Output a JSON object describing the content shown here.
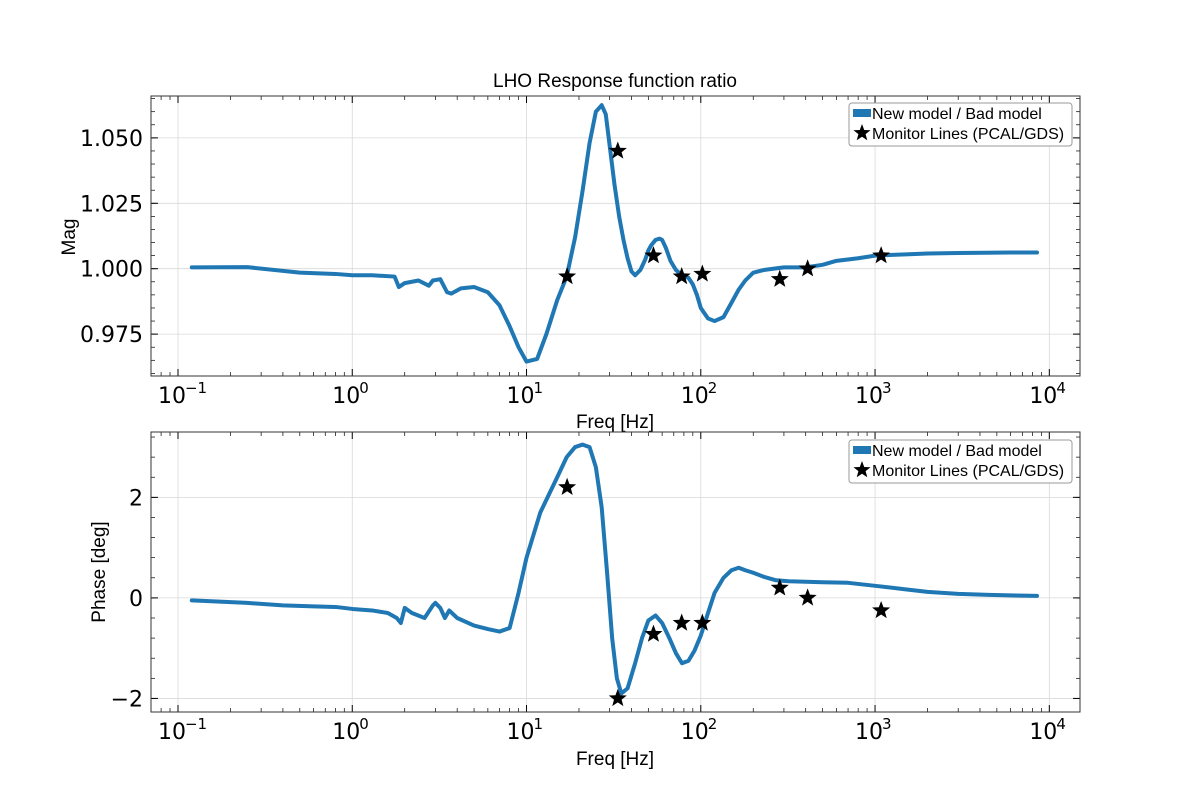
{
  "chart_data": [
    {
      "type": "line",
      "title": "LHO Response function ratio",
      "xlabel": "Freq [Hz]",
      "ylabel": "Mag",
      "xscale": "log",
      "xlim": [
        0.07,
        15000
      ],
      "ylim": [
        0.959,
        1.066
      ],
      "yticks": [
        0.975,
        1.0,
        1.025,
        1.05
      ],
      "ytick_labels": [
        "0.975",
        "1.000",
        "1.025",
        "1.050"
      ],
      "xtick_labels": [
        {
          "base": "10",
          "exp": "−1"
        },
        {
          "base": "10",
          "exp": "0"
        },
        {
          "base": "10",
          "exp": "1"
        },
        {
          "base": "10",
          "exp": "2"
        },
        {
          "base": "10",
          "exp": "3"
        },
        {
          "base": "10",
          "exp": "4"
        }
      ],
      "grid": true,
      "legend_position": "top-right",
      "series": [
        {
          "name": "New model / Bad model",
          "color": "#1f77b4",
          "x": [
            0.12,
            0.25,
            0.5,
            0.8,
            1.0,
            1.3,
            1.75,
            1.85,
            2.0,
            2.4,
            2.75,
            2.9,
            3.2,
            3.5,
            3.7,
            4.2,
            5.0,
            6.0,
            7.0,
            8.0,
            9.0,
            10.0,
            11.5,
            13.0,
            15.0,
            17.0,
            19.0,
            21.0,
            23.0,
            25.0,
            27.0,
            28.5,
            30.0,
            32.0,
            34.0,
            36.0,
            38.0,
            40.0,
            42.0,
            45.0,
            48.0,
            50.0,
            52.0,
            55.0,
            58.0,
            60.0,
            63.0,
            67.0,
            72.0,
            78.0,
            85.0,
            90.0,
            95.0,
            100.0,
            110.0,
            120.0,
            135.0,
            150.0,
            165.0,
            180.0,
            200.0,
            230.0,
            260.0,
            300.0,
            350.0,
            400.0,
            500.0,
            600.0,
            800.0,
            1000.0,
            1500.0,
            2000.0,
            3000.0,
            4300.0,
            6000.0,
            8500.0
          ],
          "values": [
            1.0005,
            1.0006,
            0.9985,
            0.998,
            0.9975,
            0.9975,
            0.997,
            0.993,
            0.9945,
            0.9955,
            0.9935,
            0.9955,
            0.996,
            0.991,
            0.9905,
            0.9925,
            0.993,
            0.991,
            0.986,
            0.978,
            0.97,
            0.9645,
            0.9655,
            0.975,
            0.988,
            0.997,
            1.012,
            1.03,
            1.048,
            1.06,
            1.0625,
            1.059,
            1.047,
            1.032,
            1.02,
            1.011,
            1.004,
            0.999,
            0.9975,
            0.9995,
            1.0035,
            1.007,
            1.009,
            1.011,
            1.0115,
            1.011,
            1.008,
            1.003,
            0.9995,
            0.9975,
            0.9965,
            0.994,
            0.99,
            0.985,
            0.981,
            0.98,
            0.9815,
            0.987,
            0.992,
            0.9955,
            0.9985,
            0.9995,
            1.0,
            1.0005,
            1.0005,
            1.0005,
            1.0015,
            1.003,
            1.004,
            1.005,
            1.0055,
            1.0058,
            1.006,
            1.0061,
            1.0062,
            1.0062
          ]
        },
        {
          "name": "Monitor Lines (PCAL/GDS)",
          "marker": "star",
          "color": "#000000",
          "x": [
            17.1,
            33.4,
            53.5,
            77.7,
            102.1,
            283.9,
            410.3,
            1083.7
          ],
          "values": [
            0.997,
            1.045,
            1.005,
            0.997,
            0.998,
            0.996,
            1.0,
            1.005
          ]
        }
      ]
    },
    {
      "type": "line",
      "title": "",
      "xlabel": "Freq [Hz]",
      "ylabel": "Phase [deg]",
      "xscale": "log",
      "xlim": [
        0.07,
        15000
      ],
      "ylim": [
        -2.27,
        3.3
      ],
      "yticks": [
        -2,
        0,
        2
      ],
      "ytick_labels": [
        "−2",
        "0",
        "2"
      ],
      "xtick_labels": [
        {
          "base": "10",
          "exp": "−1"
        },
        {
          "base": "10",
          "exp": "0"
        },
        {
          "base": "10",
          "exp": "1"
        },
        {
          "base": "10",
          "exp": "2"
        },
        {
          "base": "10",
          "exp": "3"
        },
        {
          "base": "10",
          "exp": "4"
        }
      ],
      "grid": true,
      "legend_position": "top-right",
      "series": [
        {
          "name": "New model / Bad model",
          "color": "#1f77b4",
          "x": [
            0.12,
            0.25,
            0.4,
            0.6,
            0.8,
            0.9,
            1.0,
            1.3,
            1.6,
            1.8,
            1.9,
            2.0,
            2.2,
            2.6,
            2.9,
            3.0,
            3.2,
            3.4,
            3.6,
            4.0,
            5.0,
            6.0,
            7.0,
            8.0,
            9.0,
            10.0,
            12.0,
            15.0,
            17.0,
            19.0,
            21.0,
            23.0,
            25.0,
            27.0,
            29.0,
            31.0,
            33.0,
            35.0,
            38.0,
            42.0,
            46.0,
            50.0,
            55.0,
            60.0,
            66.0,
            72.0,
            78.0,
            85.0,
            92.0,
            100.0,
            110.0,
            120.0,
            135.0,
            150.0,
            165.0,
            180.0,
            200.0,
            230.0,
            270.0,
            320.0,
            400.0,
            500.0,
            700.0,
            1000.0,
            1500.0,
            2000.0,
            3000.0,
            4500.0,
            6000.0,
            8500.0
          ],
          "values": [
            -0.05,
            -0.1,
            -0.15,
            -0.17,
            -0.18,
            -0.2,
            -0.22,
            -0.25,
            -0.3,
            -0.4,
            -0.5,
            -0.2,
            -0.3,
            -0.4,
            -0.15,
            -0.1,
            -0.2,
            -0.4,
            -0.25,
            -0.4,
            -0.55,
            -0.62,
            -0.67,
            -0.6,
            0.1,
            0.8,
            1.7,
            2.4,
            2.8,
            3.0,
            3.05,
            3.0,
            2.6,
            1.8,
            0.5,
            -0.8,
            -1.6,
            -1.9,
            -1.8,
            -1.3,
            -0.8,
            -0.45,
            -0.35,
            -0.5,
            -0.8,
            -1.1,
            -1.3,
            -1.25,
            -1.05,
            -0.75,
            -0.3,
            0.1,
            0.4,
            0.55,
            0.6,
            0.55,
            0.5,
            0.42,
            0.35,
            0.33,
            0.32,
            0.31,
            0.3,
            0.24,
            0.17,
            0.12,
            0.08,
            0.06,
            0.05,
            0.04
          ]
        },
        {
          "name": "Monitor Lines (PCAL/GDS)",
          "marker": "star",
          "color": "#000000",
          "x": [
            17.1,
            33.4,
            53.5,
            77.7,
            102.1,
            283.9,
            410.3,
            1083.7
          ],
          "values": [
            2.2,
            -2.0,
            -0.72,
            -0.5,
            -0.5,
            0.2,
            0.0,
            -0.25
          ]
        }
      ]
    }
  ]
}
